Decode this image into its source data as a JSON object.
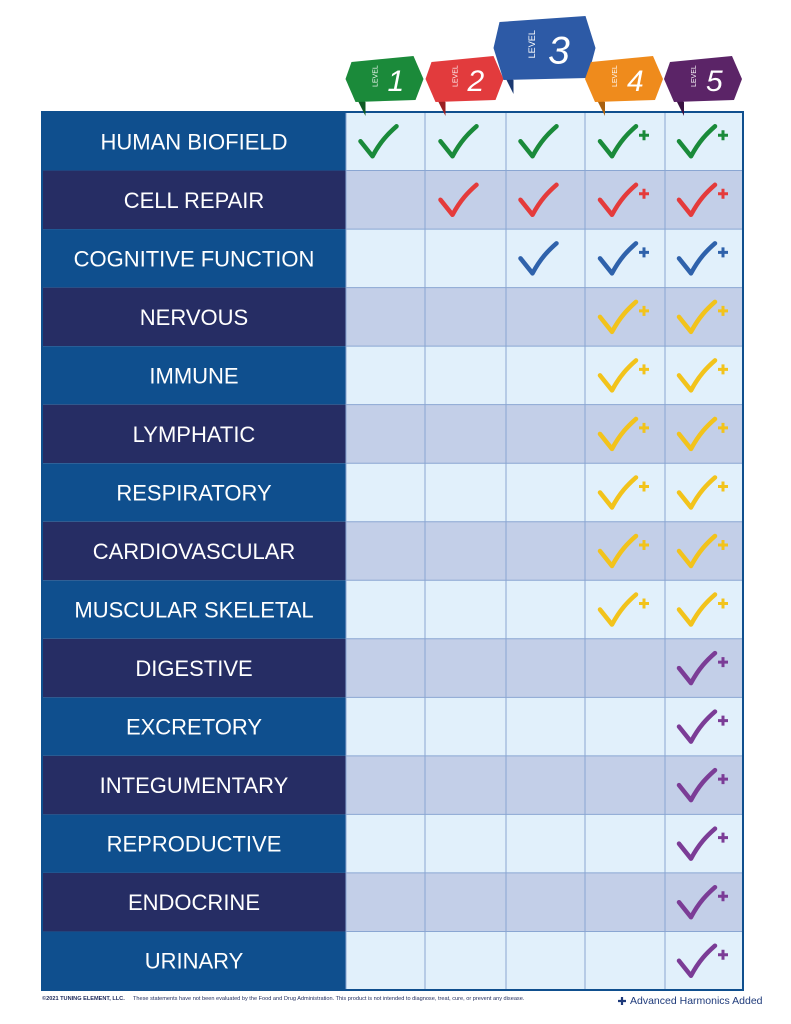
{
  "header": {
    "levels": [
      {
        "label": "LEVEL",
        "number": "1"
      },
      {
        "label": "LEVEL",
        "number": "2"
      },
      {
        "label": "LEVEL",
        "number": "3"
      },
      {
        "label": "LEVEL",
        "number": "4"
      },
      {
        "label": "LEVEL",
        "number": "5"
      }
    ]
  },
  "rows": [
    "HUMAN BIOFIELD",
    "CELL REPAIR",
    "COGNITIVE FUNCTION",
    "NERVOUS",
    "IMMUNE",
    "LYMPHATIC",
    "RESPIRATORY",
    "CARDIOVASCULAR",
    "MUSCULAR SKELETAL",
    "DIGESTIVE",
    "EXCRETORY",
    "INTEGUMENTARY",
    "REPRODUCTIVE",
    "ENDOCRINE",
    "URINARY"
  ],
  "footer": {
    "copyright": "©2021 TUNING ELEMENT, LLC.",
    "disclaimer": "These statements have not been evaluated by the Food and Drug Administration. This product is not intended to diagnose, treat, cure, or prevent any disease.",
    "legend": "Advanced Harmonics Added"
  }
}
